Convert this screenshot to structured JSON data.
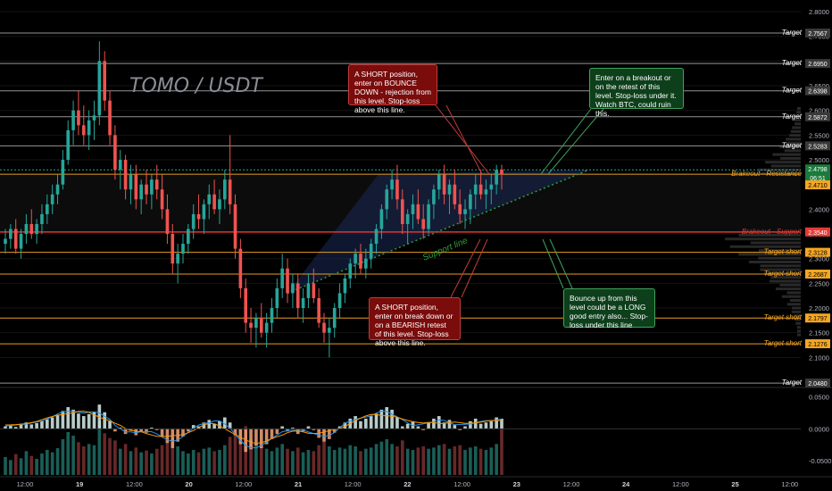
{
  "chart_data": {
    "type": "candlestick",
    "title": "TOMO / USDT",
    "x_ticks": [
      "12:00",
      "19",
      "12:00",
      "20",
      "12:00",
      "21",
      "12:00",
      "22",
      "12:00",
      "23",
      "12:00",
      "24",
      "12:00",
      "25",
      "12:00"
    ],
    "y_ticks": [
      "2.8000",
      "2.7500",
      "2.7000",
      "2.6500",
      "2.6000",
      "2.5500",
      "2.5000",
      "2.4500",
      "2.4000",
      "2.3500",
      "2.3000",
      "2.2500",
      "2.2000",
      "2.1500",
      "2.1000"
    ],
    "ylim": [
      2.05,
      2.82
    ],
    "last_price": "2.4798",
    "countdown": "06:51",
    "secondary_price": "2.4710",
    "indicator_y_ticks": [
      "0.0500",
      "0.0000",
      "-0.0500"
    ],
    "indicator_ylim": [
      -0.072,
      0.062
    ],
    "horizontal_levels": [
      {
        "value": 2.7567,
        "label": "Target",
        "tag": "2.7567",
        "color": "#9e9e9e"
      },
      {
        "value": 2.695,
        "label": "Target",
        "tag": "2.6950",
        "color": "#9e9e9e"
      },
      {
        "value": 2.6398,
        "label": "Target",
        "tag": "2.6398",
        "color": "#9e9e9e"
      },
      {
        "value": 2.5872,
        "label": "Target",
        "tag": "2.5872",
        "color": "#9e9e9e"
      },
      {
        "value": 2.5283,
        "label": "Target",
        "tag": "2.5283",
        "color": "#9e9e9e"
      },
      {
        "value": 2.471,
        "label": "Brakeout - Resistance",
        "tag": "",
        "color": "#f5a623"
      },
      {
        "value": 2.354,
        "label": "Brakeout - Support",
        "tag": "2.3540",
        "color": "#e53935"
      },
      {
        "value": 2.3128,
        "label": "Target short",
        "tag": "2.3128",
        "color": "#f5a623"
      },
      {
        "value": 2.2687,
        "label": "Target short",
        "tag": "2.2687",
        "color": "#f5a623"
      },
      {
        "value": 2.1797,
        "label": "Target short",
        "tag": "2.1797",
        "color": "#f5a623"
      },
      {
        "value": 2.1276,
        "label": "Target short",
        "tag": "2.1276",
        "color": "#f5a623"
      },
      {
        "value": 2.048,
        "label": "Target",
        "tag": "2.0480",
        "color": "#9e9e9e"
      }
    ],
    "trendline_label": "Support line",
    "colors": {
      "up": "#26a69a",
      "down": "#ef5350",
      "bg": "#000000",
      "text": "#b2b5be"
    },
    "candles": [
      [
        2.33,
        2.36,
        2.31,
        2.34
      ],
      [
        2.34,
        2.37,
        2.32,
        2.36
      ],
      [
        2.36,
        2.38,
        2.31,
        2.32
      ],
      [
        2.32,
        2.36,
        2.3,
        2.35
      ],
      [
        2.35,
        2.39,
        2.33,
        2.37
      ],
      [
        2.37,
        2.4,
        2.34,
        2.35
      ],
      [
        2.35,
        2.38,
        2.33,
        2.37
      ],
      [
        2.37,
        2.41,
        2.35,
        2.39
      ],
      [
        2.39,
        2.43,
        2.37,
        2.41
      ],
      [
        2.41,
        2.45,
        2.39,
        2.43
      ],
      [
        2.43,
        2.47,
        2.41,
        2.45
      ],
      [
        2.45,
        2.52,
        2.44,
        2.5
      ],
      [
        2.5,
        2.58,
        2.49,
        2.56
      ],
      [
        2.56,
        2.62,
        2.53,
        2.6
      ],
      [
        2.6,
        2.64,
        2.55,
        2.57
      ],
      [
        2.57,
        2.61,
        2.53,
        2.55
      ],
      [
        2.55,
        2.6,
        2.52,
        2.58
      ],
      [
        2.58,
        2.62,
        2.54,
        2.59
      ],
      [
        2.59,
        2.74,
        2.57,
        2.7
      ],
      [
        2.7,
        2.72,
        2.6,
        2.62
      ],
      [
        2.62,
        2.64,
        2.53,
        2.55
      ],
      [
        2.55,
        2.57,
        2.46,
        2.48
      ],
      [
        2.48,
        2.52,
        2.44,
        2.5
      ],
      [
        2.5,
        2.51,
        2.42,
        2.44
      ],
      [
        2.44,
        2.49,
        2.41,
        2.47
      ],
      [
        2.47,
        2.49,
        2.4,
        2.42
      ],
      [
        2.42,
        2.46,
        2.39,
        2.45
      ],
      [
        2.45,
        2.48,
        2.41,
        2.43
      ],
      [
        2.43,
        2.47,
        2.4,
        2.46
      ],
      [
        2.46,
        2.49,
        2.42,
        2.44
      ],
      [
        2.44,
        2.47,
        2.38,
        2.4
      ],
      [
        2.4,
        2.43,
        2.33,
        2.35
      ],
      [
        2.35,
        2.37,
        2.27,
        2.29
      ],
      [
        2.29,
        2.33,
        2.25,
        2.31
      ],
      [
        2.31,
        2.35,
        2.29,
        2.33
      ],
      [
        2.33,
        2.37,
        2.31,
        2.36
      ],
      [
        2.36,
        2.41,
        2.34,
        2.39
      ],
      [
        2.39,
        2.43,
        2.36,
        2.38
      ],
      [
        2.38,
        2.42,
        2.35,
        2.41
      ],
      [
        2.41,
        2.45,
        2.38,
        2.43
      ],
      [
        2.43,
        2.46,
        2.39,
        2.4
      ],
      [
        2.4,
        2.44,
        2.37,
        2.42
      ],
      [
        2.42,
        2.48,
        2.4,
        2.46
      ],
      [
        2.46,
        2.55,
        2.39,
        2.41
      ],
      [
        2.41,
        2.43,
        2.3,
        2.32
      ],
      [
        2.32,
        2.34,
        2.22,
        2.24
      ],
      [
        2.24,
        2.26,
        2.15,
        2.17
      ],
      [
        2.17,
        2.2,
        2.13,
        2.16
      ],
      [
        2.16,
        2.19,
        2.12,
        2.18
      ],
      [
        2.18,
        2.21,
        2.14,
        2.15
      ],
      [
        2.15,
        2.19,
        2.12,
        2.17
      ],
      [
        2.17,
        2.22,
        2.15,
        2.2
      ],
      [
        2.2,
        2.26,
        2.18,
        2.24
      ],
      [
        2.24,
        2.31,
        2.22,
        2.28
      ],
      [
        2.28,
        2.3,
        2.21,
        2.23
      ],
      [
        2.23,
        2.27,
        2.2,
        2.25
      ],
      [
        2.25,
        2.27,
        2.18,
        2.2
      ],
      [
        2.2,
        2.24,
        2.17,
        2.22
      ],
      [
        2.22,
        2.27,
        2.2,
        2.25
      ],
      [
        2.25,
        2.28,
        2.21,
        2.22
      ],
      [
        2.22,
        2.24,
        2.16,
        2.17
      ],
      [
        2.17,
        2.19,
        2.13,
        2.15
      ],
      [
        2.15,
        2.18,
        2.1,
        2.16
      ],
      [
        2.16,
        2.21,
        2.14,
        2.2
      ],
      [
        2.2,
        2.25,
        2.18,
        2.23
      ],
      [
        2.23,
        2.27,
        2.21,
        2.26
      ],
      [
        2.26,
        2.3,
        2.24,
        2.29
      ],
      [
        2.29,
        2.32,
        2.26,
        2.31
      ],
      [
        2.31,
        2.33,
        2.27,
        2.28
      ],
      [
        2.28,
        2.32,
        2.26,
        2.3
      ],
      [
        2.3,
        2.34,
        2.28,
        2.33
      ],
      [
        2.33,
        2.37,
        2.31,
        2.36
      ],
      [
        2.36,
        2.41,
        2.34,
        2.4
      ],
      [
        2.4,
        2.45,
        2.38,
        2.44
      ],
      [
        2.44,
        2.48,
        2.42,
        2.46
      ],
      [
        2.46,
        2.49,
        2.4,
        2.42
      ],
      [
        2.42,
        2.44,
        2.35,
        2.37
      ],
      [
        2.37,
        2.4,
        2.33,
        2.39
      ],
      [
        2.39,
        2.43,
        2.36,
        2.41
      ],
      [
        2.41,
        2.44,
        2.37,
        2.38
      ],
      [
        2.38,
        2.41,
        2.34,
        2.36
      ],
      [
        2.36,
        2.42,
        2.35,
        2.41
      ],
      [
        2.41,
        2.45,
        2.38,
        2.44
      ],
      [
        2.44,
        2.48,
        2.42,
        2.47
      ],
      [
        2.47,
        2.49,
        2.41,
        2.43
      ],
      [
        2.43,
        2.46,
        2.39,
        2.45
      ],
      [
        2.45,
        2.48,
        2.4,
        2.41
      ],
      [
        2.41,
        2.44,
        2.37,
        2.39
      ],
      [
        2.39,
        2.42,
        2.36,
        2.4
      ],
      [
        2.4,
        2.44,
        2.37,
        2.43
      ],
      [
        2.43,
        2.47,
        2.4,
        2.45
      ],
      [
        2.45,
        2.48,
        2.42,
        2.43
      ],
      [
        2.43,
        2.46,
        2.4,
        2.44
      ],
      [
        2.44,
        2.47,
        2.41,
        2.45
      ],
      [
        2.45,
        2.49,
        2.43,
        2.48
      ],
      [
        2.48,
        2.49,
        2.44,
        2.47
      ]
    ],
    "indicator": [
      0.004,
      0.006,
      0.003,
      0.008,
      0.01,
      0.007,
      0.009,
      0.012,
      0.015,
      0.018,
      0.022,
      0.028,
      0.034,
      0.03,
      0.024,
      0.02,
      0.023,
      0.026,
      0.038,
      0.026,
      0.012,
      -0.004,
      0.002,
      -0.008,
      -0.003,
      -0.01,
      -0.004,
      -0.006,
      0.002,
      -0.002,
      -0.012,
      -0.022,
      -0.03,
      -0.02,
      -0.012,
      -0.004,
      0.006,
      0.004,
      0.01,
      0.014,
      0.008,
      0.012,
      0.018,
      0.01,
      -0.01,
      -0.024,
      -0.036,
      -0.032,
      -0.026,
      -0.03,
      -0.024,
      -0.016,
      -0.008,
      0.004,
      -0.004,
      0.002,
      -0.008,
      -0.004,
      0.004,
      -0.002,
      -0.014,
      -0.02,
      -0.016,
      -0.006,
      0.004,
      0.01,
      0.016,
      0.02,
      0.012,
      0.016,
      0.02,
      0.024,
      0.03,
      0.034,
      0.03,
      0.018,
      0.004,
      0.008,
      0.012,
      0.004,
      -0.002,
      0.01,
      0.016,
      0.02,
      0.01,
      0.014,
      0.006,
      -0.002,
      0.004,
      0.012,
      0.016,
      0.008,
      0.01,
      0.012,
      0.018,
      0.016
    ],
    "volume": [
      0.3,
      0.25,
      0.35,
      0.28,
      0.4,
      0.32,
      0.27,
      0.36,
      0.42,
      0.38,
      0.45,
      0.6,
      0.72,
      0.66,
      0.55,
      0.48,
      0.52,
      0.5,
      0.9,
      0.7,
      0.62,
      0.58,
      0.44,
      0.52,
      0.4,
      0.46,
      0.38,
      0.41,
      0.36,
      0.44,
      0.5,
      0.56,
      0.62,
      0.48,
      0.4,
      0.36,
      0.42,
      0.38,
      0.44,
      0.46,
      0.4,
      0.42,
      0.5,
      0.64,
      0.7,
      0.78,
      0.82,
      0.6,
      0.52,
      0.48,
      0.44,
      0.4,
      0.46,
      0.52,
      0.44,
      0.4,
      0.46,
      0.38,
      0.42,
      0.4,
      0.5,
      0.56,
      0.48,
      0.42,
      0.46,
      0.44,
      0.5,
      0.48,
      0.4,
      0.44,
      0.46,
      0.52,
      0.56,
      0.6,
      0.52,
      0.48,
      0.58,
      0.44,
      0.42,
      0.46,
      0.48,
      0.44,
      0.46,
      0.5,
      0.52,
      0.44,
      0.48,
      0.5,
      0.42,
      0.46,
      0.48,
      0.44,
      0.42,
      0.46,
      0.52,
      0.8
    ]
  },
  "callouts": [
    {
      "id": "short-resistance",
      "text": "A SHORT position, enter on BOUNCE DOWN - rejection from this level. Stop-loss above this line.",
      "color": "red"
    },
    {
      "id": "long-breakout",
      "text": "Enter on a breakout or on the retest of this level. Stop-loss under it. Watch BTC, could ruin this.",
      "color": "green"
    },
    {
      "id": "short-support",
      "text": "A SHORT position, enter on break down or on a BEARISH retest of this level. Stop-loss above this line.",
      "color": "red"
    },
    {
      "id": "long-bounce",
      "text": "Bounce up from this level could be a LONG good entry also... Stop-loss under this line",
      "color": "green"
    }
  ]
}
